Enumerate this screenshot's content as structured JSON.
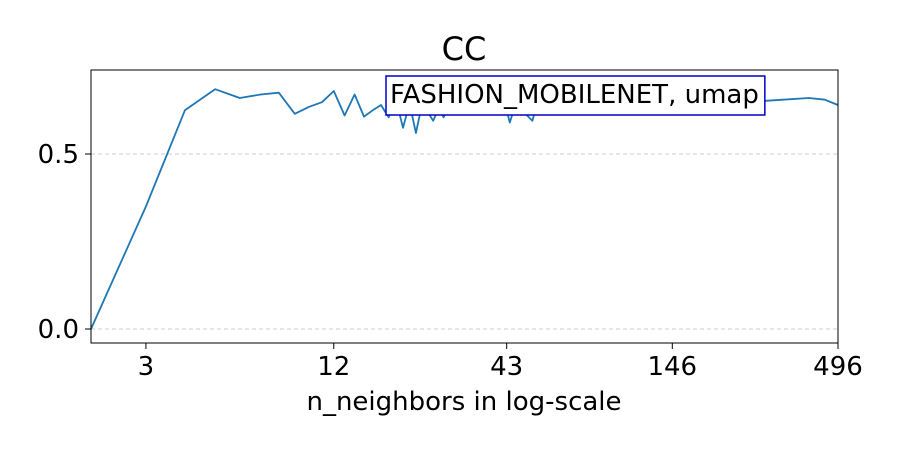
{
  "chart_data": {
    "type": "line",
    "title": "CC",
    "xlabel": "n_neighbors in log-scale",
    "ylabel": "",
    "x_scale": "log",
    "x_ticks": [
      3,
      12,
      43,
      146,
      496
    ],
    "x_tick_labels": [
      "3",
      "12",
      "43",
      "146",
      "496"
    ],
    "y_ticks": [
      0.0,
      0.5
    ],
    "y_tick_labels": [
      "0.0",
      "0.5"
    ],
    "xlim": [
      2,
      496
    ],
    "ylim": [
      -0.04,
      0.74
    ],
    "grid": "horizontal dashed",
    "legend_placement": "top-right",
    "legend_text": "FASHION_MOBILENET, umap",
    "series": [
      {
        "color": "#1f77b4",
        "x": [
          2,
          3,
          4,
          5,
          6,
          7,
          8,
          9,
          10,
          11,
          12,
          13,
          14,
          15,
          16,
          17,
          18,
          19,
          20,
          21,
          22,
          23,
          24,
          25,
          26,
          27,
          28,
          29,
          30,
          32,
          34,
          36,
          38,
          40,
          42,
          44,
          46,
          48,
          50,
          52,
          54,
          56,
          60,
          64,
          70,
          80,
          90,
          100,
          120,
          146,
          180,
          220,
          270,
          330,
          400,
          450,
          496
        ],
        "y": [
          0.0,
          0.35,
          0.625,
          0.685,
          0.66,
          0.67,
          0.675,
          0.615,
          0.635,
          0.648,
          0.68,
          0.61,
          0.67,
          0.607,
          0.625,
          0.64,
          0.605,
          0.655,
          0.575,
          0.645,
          0.56,
          0.64,
          0.62,
          0.595,
          0.63,
          0.605,
          0.64,
          0.62,
          0.645,
          0.63,
          0.65,
          0.64,
          0.655,
          0.63,
          0.66,
          0.59,
          0.645,
          0.635,
          0.61,
          0.595,
          0.65,
          0.64,
          0.655,
          0.645,
          0.66,
          0.65,
          0.645,
          0.66,
          0.65,
          0.655,
          0.645,
          0.66,
          0.65,
          0.655,
          0.66,
          0.655,
          0.64
        ]
      }
    ]
  }
}
